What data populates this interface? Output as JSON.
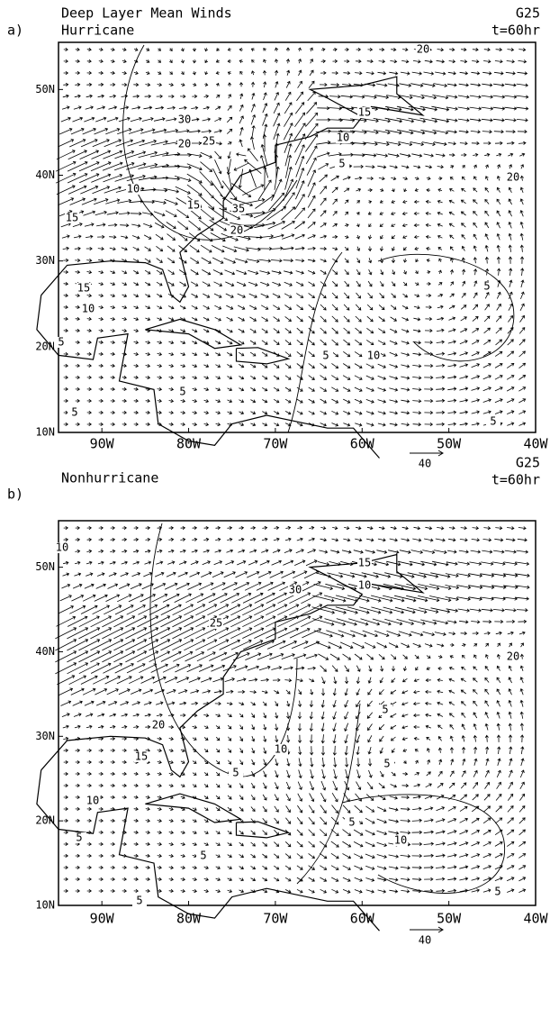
{
  "panels": [
    {
      "label": "a)",
      "title_lines": [
        "Deep Layer Mean Winds",
        "Hurricane"
      ],
      "run": "G25",
      "time": "t=60hr",
      "lat_labels": [
        "50N",
        "40N",
        "30N",
        "20N",
        "10N"
      ],
      "lon_labels": [
        "90W",
        "80W",
        "70W",
        "60W",
        "50W",
        "40W"
      ],
      "contour_labels": [
        30,
        20,
        25,
        15,
        10,
        5,
        20,
        20,
        10,
        15,
        35,
        20,
        15,
        15,
        10,
        5,
        10,
        5,
        5,
        5,
        5,
        5
      ],
      "reference_label": "40"
    },
    {
      "label": "b)",
      "title_lines": [
        "Nonhurricane"
      ],
      "run": "G25",
      "time": "t=60hr",
      "lat_labels": [
        "50N",
        "40N",
        "30N",
        "20N",
        "10N"
      ],
      "lon_labels": [
        "90W",
        "80W",
        "70W",
        "60W",
        "50W",
        "40W"
      ],
      "contour_labels": [
        10,
        30,
        15,
        10,
        20,
        25,
        5,
        20,
        15,
        10,
        5,
        5,
        10,
        5,
        10,
        5,
        5,
        5,
        5
      ],
      "reference_label": "40"
    }
  ]
}
